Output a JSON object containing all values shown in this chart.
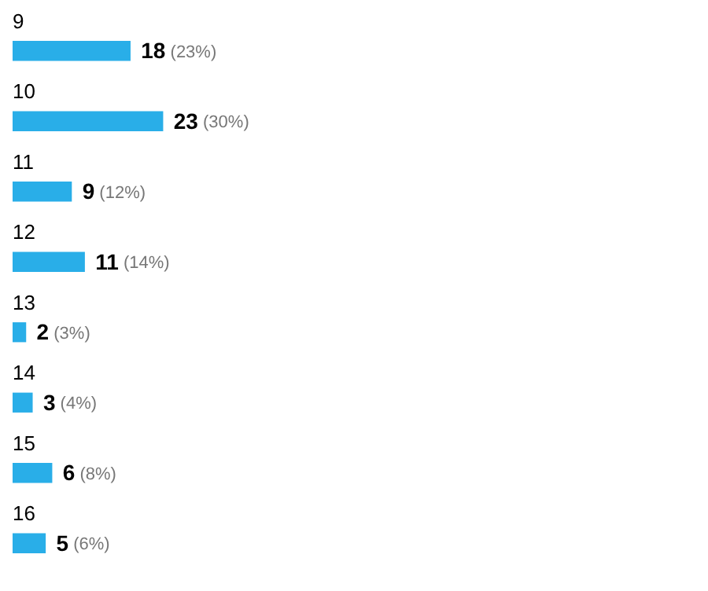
{
  "chart_data": {
    "type": "bar",
    "orientation": "horizontal",
    "categories": [
      "9",
      "10",
      "11",
      "12",
      "13",
      "14",
      "15",
      "16"
    ],
    "values": [
      18,
      23,
      9,
      11,
      2,
      3,
      6,
      5
    ],
    "value_labels": [
      "18 (23%)",
      "23 (30%)",
      "9 (12%)",
      "11 (14%)",
      "2 (3%)",
      "3 (4%)",
      "6 (8%)",
      "5 (6%)"
    ],
    "color": "#29aee8"
  }
}
